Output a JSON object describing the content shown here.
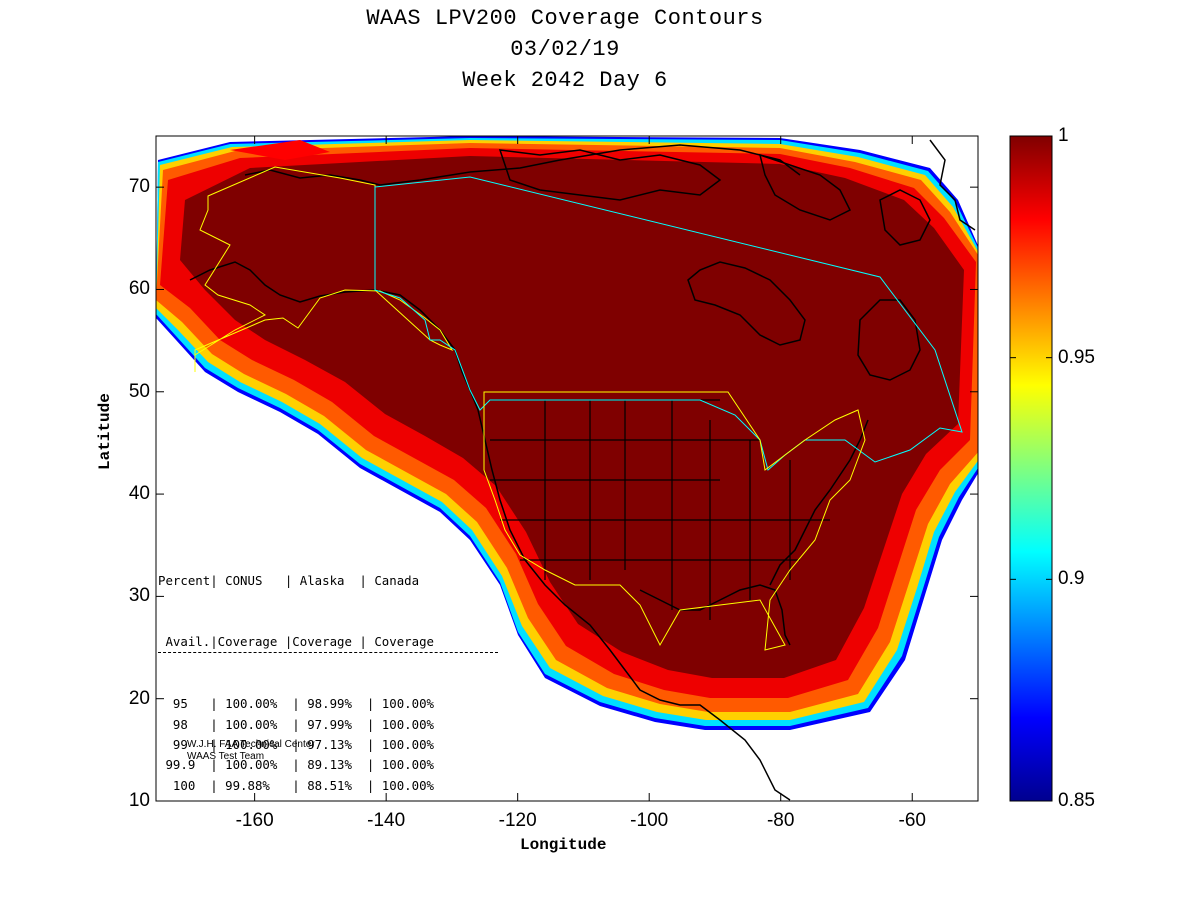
{
  "title": {
    "line1": "WAAS LPV200 Coverage Contours",
    "line2": "03/02/19",
    "line3": "Week 2042 Day 6"
  },
  "axes": {
    "xlabel": "Longitude",
    "ylabel": "Latitude",
    "xlim": [
      -175,
      -50
    ],
    "ylim": [
      10,
      75
    ],
    "xticks": [
      "-160",
      "-140",
      "-120",
      "-100",
      "-80",
      "-60"
    ],
    "yticks": [
      "10",
      "20",
      "30",
      "40",
      "50",
      "60",
      "70"
    ]
  },
  "colorbar": {
    "range": [
      0.85,
      1
    ],
    "ticks": [
      "1",
      "0.95",
      "0.9",
      "0.85"
    ],
    "colormap": "jet"
  },
  "coverage_table": {
    "header1": "Percent| CONUS   | Alaska  | Canada",
    "header2": " Avail.|Coverage |Coverage | Coverage",
    "rows": [
      {
        "avail": "95",
        "conus": "100.00%",
        "alaska": "98.99%",
        "canada": "100.00%"
      },
      {
        "avail": "98",
        "conus": "100.00%",
        "alaska": "97.99%",
        "canada": "100.00%"
      },
      {
        "avail": "99",
        "conus": "100.00%",
        "alaska": "97.13%",
        "canada": "100.00%"
      },
      {
        "avail": "99.9",
        "conus": "100.00%",
        "alaska": "89.13%",
        "canada": "100.00%"
      },
      {
        "avail": "100",
        "conus": "99.88%",
        "alaska": "88.51%",
        "canada": "100.00%"
      }
    ]
  },
  "credits": {
    "line1": "W.J.H. FAA Technical Center",
    "line2": "WAAS Test Team"
  },
  "colors": {
    "core": "#7f0000",
    "service_volume_conus": "#ffff00",
    "service_volume_canada": "#00ffff",
    "coastline": "#000000"
  }
}
